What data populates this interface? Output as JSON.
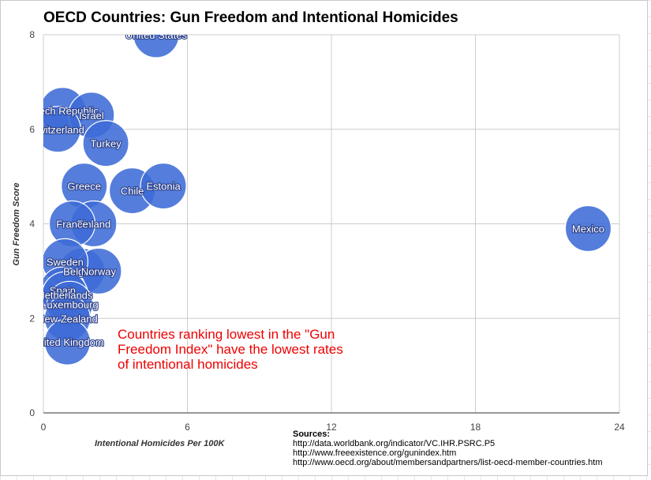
{
  "title": "OECD Countries: Gun Freedom and Intentional Homicides",
  "annotation": "Countries ranking lowest in the \"Gun Freedom Index\" have the lowest rates of intentional homicides",
  "sources": {
    "title": "Sources:",
    "lines": [
      "http://data.worldbank.org/indicator/VC.IHR.PSRC.P5",
      "http://www.freeexistence.org/gunindex.htm",
      "http://www.oecd.org/about/membersandpartners/list-oecd-member-countries.htm"
    ]
  },
  "chart_data": {
    "type": "scatter",
    "title": "OECD Countries: Gun Freedom and Intentional Homicides",
    "xlabel": "Intentional Homicides Per 100K",
    "ylabel": "Gun Freedom Score",
    "xlim": [
      0,
      24
    ],
    "ylim": [
      0,
      8
    ],
    "xticks": [
      0,
      6,
      12,
      18,
      24
    ],
    "yticks": [
      0,
      2,
      4,
      6,
      8
    ],
    "grid": true,
    "bubble_color": "#3d6bd6",
    "points": [
      {
        "label": "United States",
        "x": 4.7,
        "y": 8.0
      },
      {
        "label": "Czech Republic",
        "x": 0.8,
        "y": 6.4
      },
      {
        "label": "Israel",
        "x": 2.0,
        "y": 6.3
      },
      {
        "label": "Switzerland",
        "x": 0.6,
        "y": 6.0
      },
      {
        "label": "Turkey",
        "x": 2.6,
        "y": 5.7
      },
      {
        "label": "Greece",
        "x": 1.7,
        "y": 4.8
      },
      {
        "label": "Chile",
        "x": 3.7,
        "y": 4.7
      },
      {
        "label": "Estonia",
        "x": 5.0,
        "y": 4.8
      },
      {
        "label": "Finland",
        "x": 2.1,
        "y": 4.0
      },
      {
        "label": "France",
        "x": 1.2,
        "y": 4.0
      },
      {
        "label": "Mexico",
        "x": 22.7,
        "y": 3.9
      },
      {
        "label": "Belgium",
        "x": 1.6,
        "y": 3.0
      },
      {
        "label": "Norway",
        "x": 2.3,
        "y": 3.0
      },
      {
        "label": "Sweden",
        "x": 0.9,
        "y": 3.2
      },
      {
        "label": "Spain",
        "x": 0.8,
        "y": 2.6
      },
      {
        "label": "Netherlands",
        "x": 0.9,
        "y": 2.5
      },
      {
        "label": "Luxembourg",
        "x": 1.1,
        "y": 2.3
      },
      {
        "label": "New Zealand",
        "x": 1.0,
        "y": 2.0
      },
      {
        "label": "United Kingdom",
        "x": 1.0,
        "y": 1.5
      }
    ]
  }
}
